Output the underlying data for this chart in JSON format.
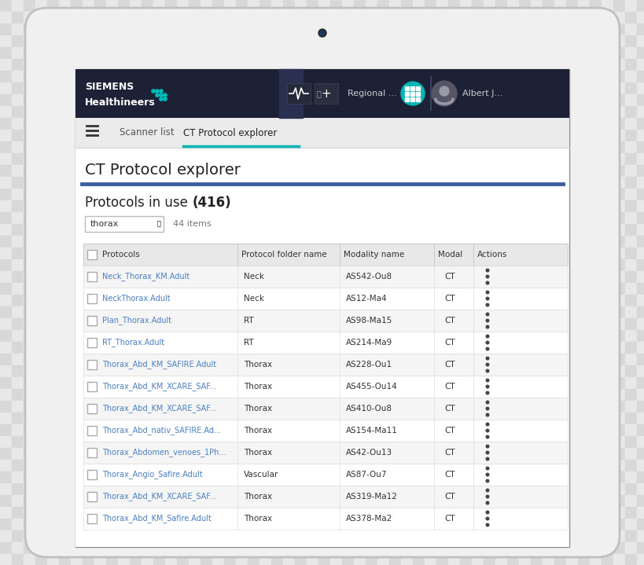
{
  "bg_outer": "#e0e0e0",
  "bg_tablet": "#ffffff",
  "bg_header": "#1c2135",
  "bg_nav": "#efefef",
  "bg_table_header": "#e8e8e8",
  "bg_row_alt": "#f5f5f5",
  "bg_row_normal": "#ffffff",
  "accent_teal": "#00b5b5",
  "accent_blue": "#4472c4",
  "text_white": "#ffffff",
  "text_dark": "#222222",
  "text_blue_link": "#4a7fc1",
  "text_gray": "#777777",
  "divider_blue": "#3c5fa0",
  "tablet_bg": "#f2f2f2",
  "table_rows": [
    [
      "Neck_Thorax_KM.Adult",
      "Neck",
      "AS542-Ou8",
      "CT"
    ],
    [
      "NeckThorax.Adult",
      "Neck",
      "AS12-Ma4",
      "CT"
    ],
    [
      "Plan_Thorax.Adult",
      "RT",
      "AS98-Ma15",
      "CT"
    ],
    [
      "RT_Thorax.Adult",
      "RT",
      "AS214-Ma9",
      "CT"
    ],
    [
      "Thorax_Abd_KM_SAFIRE.Adult",
      "Thorax",
      "AS228-Ou1",
      "CT"
    ],
    [
      "Thorax_Abd_KM_XCARE_SAF...",
      "Thorax",
      "AS455-Ou14",
      "CT"
    ],
    [
      "Thorax_Abd_KM_XCARE_SAF...",
      "Thorax",
      "AS410-Ou8",
      "CT"
    ],
    [
      "Thorax_Abd_nativ_SAFIRE.Ad...",
      "Thorax",
      "AS154-Ma11",
      "CT"
    ],
    [
      "Thorax_Abdomen_venoes_1Ph...",
      "Thorax",
      "AS42-Ou13",
      "CT"
    ],
    [
      "Thorax_Angio_Safire.Adult",
      "Vascular",
      "AS87-Ou7",
      "CT"
    ],
    [
      "Thorax_Abd_KM_XCARE_SAF...",
      "Thorax",
      "AS319-Ma12",
      "CT"
    ],
    [
      "Thorax_Abd_KM_Safire.Adult",
      "Thorax",
      "AS378-Ma2",
      "CT"
    ]
  ],
  "col_headers": [
    "Protocols",
    "Protocol folder name",
    "Modality name",
    "Modal",
    "Actions"
  ]
}
